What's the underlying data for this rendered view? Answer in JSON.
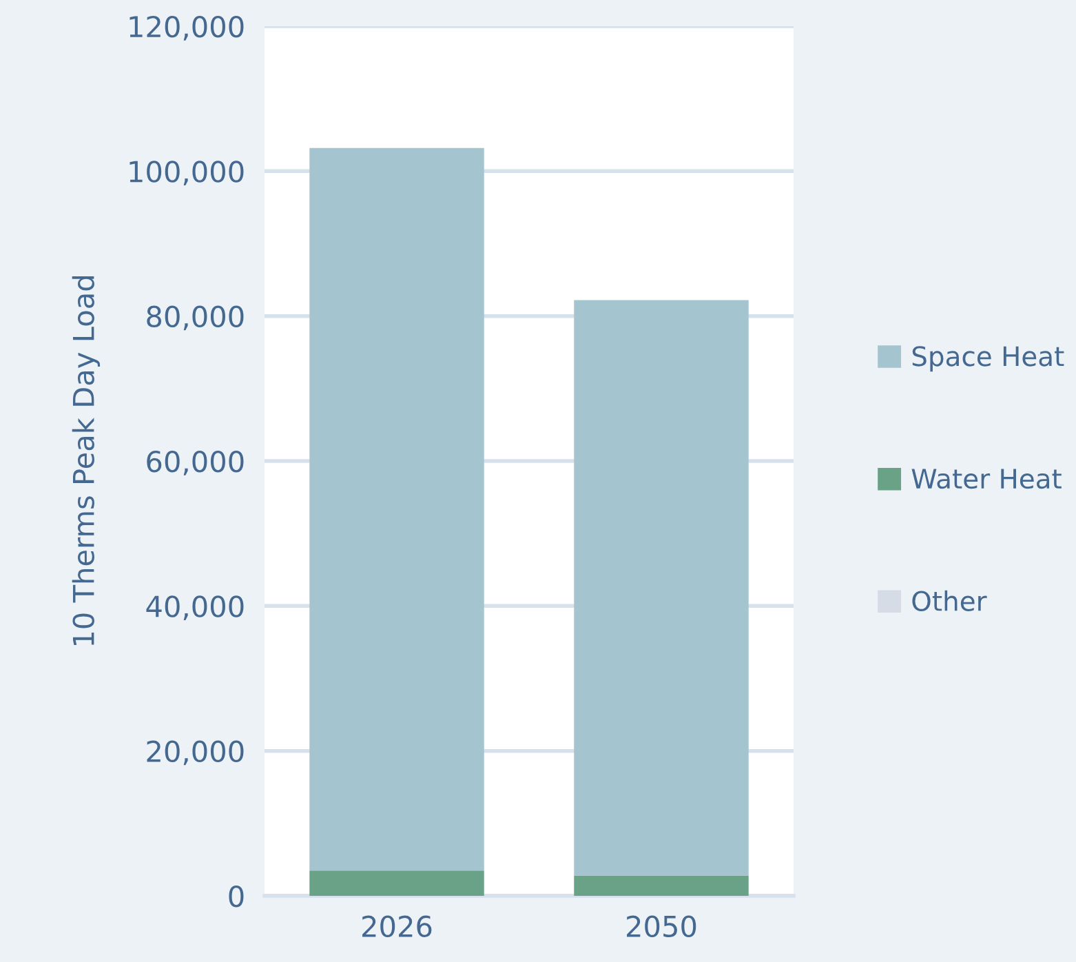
{
  "chart_data": {
    "type": "bar",
    "stacked": true,
    "ylabel": "10 Therms Peak Day Load",
    "categories": [
      "2026",
      "2050"
    ],
    "series": [
      {
        "name": "Other",
        "color": "#d5dce6",
        "values": [
          null,
          null
        ]
      },
      {
        "name": "Water Heat",
        "color": "#6aa287",
        "values": [
          3500,
          2800
        ]
      },
      {
        "name": "Space Heat",
        "color": "#a4c4d0",
        "values": [
          99700,
          79400
        ]
      }
    ],
    "ylim": [
      0,
      120000
    ],
    "yticks": [
      {
        "value": 0,
        "label": "0"
      },
      {
        "value": 20000,
        "label": "20,000"
      },
      {
        "value": 40000,
        "label": "40,000"
      },
      {
        "value": 60000,
        "label": "60,000"
      },
      {
        "value": 80000,
        "label": "80,000"
      },
      {
        "value": 100000,
        "label": "100,000"
      },
      {
        "value": 120000,
        "label": "120,000"
      }
    ],
    "grid": "y",
    "legend": "right"
  }
}
